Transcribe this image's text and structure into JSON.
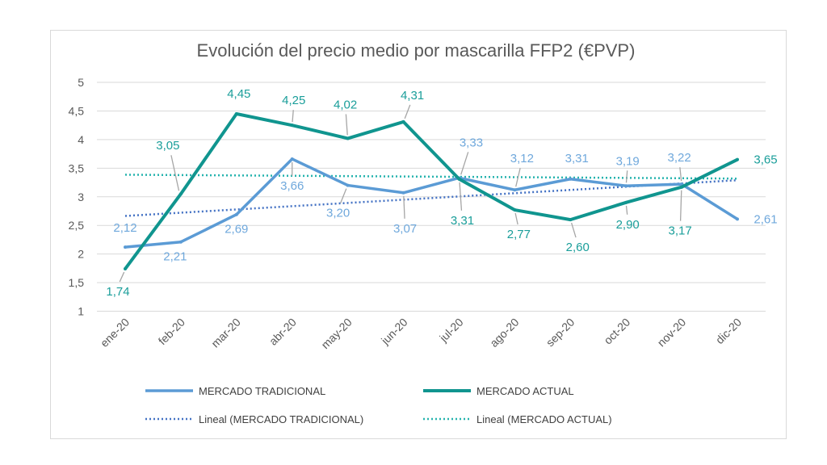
{
  "chart_data": {
    "type": "line",
    "title": "Evolución del precio medio por mascarilla FFP2 (€PVP)",
    "xlabel": "",
    "ylabel": "",
    "categories": [
      "ene-20",
      "feb-20",
      "mar-20",
      "abr-20",
      "may-20",
      "jun-20",
      "jul-20",
      "ago-20",
      "sep-20",
      "oct-20",
      "nov-20",
      "dic-20"
    ],
    "ylim": [
      1,
      5
    ],
    "yticks": [
      1,
      1.5,
      2,
      2.5,
      3,
      3.5,
      4,
      4.5,
      5
    ],
    "ytick_labels": [
      "1",
      "1,5",
      "2",
      "2,5",
      "3",
      "3,5",
      "4",
      "4,5",
      "5"
    ],
    "grid": true,
    "legend_position": "bottom",
    "series": [
      {
        "name": "MERCADO TRADICIONAL",
        "color": "#5b9bd5",
        "label_color": "#6fa8dc",
        "values": [
          2.12,
          2.21,
          2.69,
          3.66,
          3.2,
          3.07,
          3.33,
          3.12,
          3.31,
          3.19,
          3.22,
          2.61
        ],
        "data_labels": [
          "2,12",
          "2,21",
          "2,69",
          "3,66",
          "3,20",
          "3,07",
          "3,33",
          "3,12",
          "3,31",
          "3,19",
          "3,22",
          "2,61"
        ]
      },
      {
        "name": "MERCADO ACTUAL",
        "color": "#10958f",
        "label_color": "#1a9e9a",
        "values": [
          1.74,
          3.05,
          4.45,
          4.25,
          4.02,
          4.31,
          3.31,
          2.77,
          2.6,
          2.9,
          3.17,
          3.65
        ],
        "data_labels": [
          "1,74",
          "3,05",
          "4,45",
          "4,25",
          "4,02",
          "4,31",
          "3,31",
          "2,77",
          "2,60",
          "2,90",
          "3,17",
          "3,65"
        ]
      }
    ],
    "trendlines": [
      {
        "name": "Lineal (MERCADO TRADICIONAL)",
        "type": "linear",
        "of_series": 0,
        "color": "#4472c4",
        "style": "dotted"
      },
      {
        "name": "Lineal (MERCADO ACTUAL)",
        "type": "linear",
        "of_series": 1,
        "color": "#25b3ae",
        "style": "dotted"
      }
    ]
  }
}
